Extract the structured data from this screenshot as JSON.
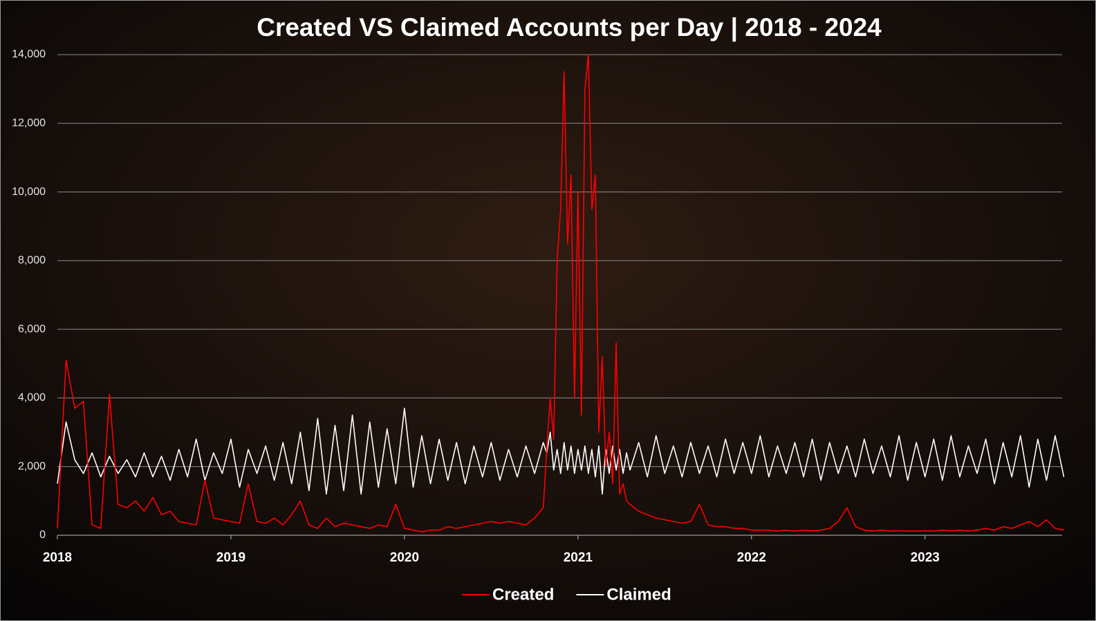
{
  "chart_data": {
    "type": "line",
    "title": "Created VS Claimed Accounts per Day | 2018 - 2024",
    "x": [
      2018.0,
      2018.05,
      2018.1,
      2018.15,
      2018.2,
      2018.25,
      2018.3,
      2018.35,
      2018.4,
      2018.45,
      2018.5,
      2018.55,
      2018.6,
      2018.65,
      2018.7,
      2018.75,
      2018.8,
      2018.85,
      2018.9,
      2018.95,
      2019.0,
      2019.05,
      2019.1,
      2019.15,
      2019.2,
      2019.25,
      2019.3,
      2019.35,
      2019.4,
      2019.45,
      2019.5,
      2019.55,
      2019.6,
      2019.65,
      2019.7,
      2019.75,
      2019.8,
      2019.85,
      2019.9,
      2019.95,
      2020.0,
      2020.05,
      2020.1,
      2020.15,
      2020.2,
      2020.25,
      2020.3,
      2020.35,
      2020.4,
      2020.45,
      2020.5,
      2020.55,
      2020.6,
      2020.65,
      2020.7,
      2020.75,
      2020.8,
      2020.82,
      2020.84,
      2020.86,
      2020.88,
      2020.9,
      2020.92,
      2020.94,
      2020.96,
      2020.98,
      2021.0,
      2021.02,
      2021.04,
      2021.06,
      2021.08,
      2021.1,
      2021.12,
      2021.14,
      2021.16,
      2021.18,
      2021.2,
      2021.22,
      2021.24,
      2021.26,
      2021.28,
      2021.3,
      2021.35,
      2021.4,
      2021.45,
      2021.5,
      2021.55,
      2021.6,
      2021.65,
      2021.7,
      2021.75,
      2021.8,
      2021.85,
      2021.9,
      2021.95,
      2022.0,
      2022.05,
      2022.1,
      2022.15,
      2022.2,
      2022.25,
      2022.3,
      2022.35,
      2022.4,
      2022.45,
      2022.5,
      2022.55,
      2022.6,
      2022.65,
      2022.7,
      2022.75,
      2022.8,
      2022.85,
      2022.9,
      2022.95,
      2023.0,
      2023.05,
      2023.1,
      2023.15,
      2023.2,
      2023.25,
      2023.3,
      2023.35,
      2023.4,
      2023.45,
      2023.5,
      2023.55,
      2023.6,
      2023.65,
      2023.7,
      2023.75,
      2023.8
    ],
    "series": [
      {
        "name": "Created",
        "color": "#ff0000",
        "values": [
          200,
          5100,
          3700,
          3900,
          300,
          200,
          4100,
          900,
          800,
          1000,
          700,
          1100,
          600,
          700,
          400,
          350,
          300,
          1600,
          500,
          450,
          400,
          350,
          1500,
          400,
          350,
          500,
          300,
          600,
          1000,
          300,
          200,
          500,
          250,
          350,
          300,
          250,
          200,
          300,
          250,
          900,
          200,
          150,
          100,
          150,
          150,
          250,
          200,
          250,
          300,
          350,
          400,
          350,
          400,
          350,
          300,
          500,
          800,
          2500,
          4000,
          2800,
          8000,
          9500,
          13500,
          8500,
          10500,
          4000,
          10000,
          3500,
          13000,
          14000,
          9500,
          10500,
          3000,
          5200,
          2000,
          3000,
          1500,
          5600,
          1200,
          1500,
          1000,
          900,
          700,
          600,
          500,
          450,
          400,
          350,
          400,
          900,
          300,
          250,
          250,
          200,
          200,
          150,
          150,
          150,
          120,
          150,
          120,
          150,
          130,
          150,
          200,
          400,
          800,
          250,
          150,
          120,
          150,
          120,
          130,
          120,
          120,
          130,
          120,
          150,
          130,
          150,
          120,
          150,
          200,
          150,
          250,
          200,
          300,
          400,
          250,
          450,
          200,
          150
        ]
      },
      {
        "name": "Claimed",
        "color": "#ffffff",
        "values": [
          1500,
          3300,
          2200,
          1800,
          2400,
          1700,
          2300,
          1800,
          2200,
          1700,
          2400,
          1700,
          2300,
          1600,
          2500,
          1700,
          2800,
          1600,
          2400,
          1800,
          2800,
          1400,
          2500,
          1800,
          2600,
          1600,
          2700,
          1500,
          3000,
          1300,
          3400,
          1200,
          3200,
          1300,
          3500,
          1200,
          3300,
          1400,
          3100,
          1500,
          3700,
          1400,
          2900,
          1500,
          2800,
          1600,
          2700,
          1500,
          2600,
          1700,
          2700,
          1600,
          2500,
          1700,
          2600,
          1800,
          2700,
          2400,
          3000,
          1900,
          2500,
          1800,
          2700,
          1900,
          2600,
          1800,
          2500,
          1900,
          2600,
          1800,
          2500,
          1700,
          2600,
          1200,
          2500,
          1800,
          2600,
          1900,
          2500,
          1800,
          2400,
          1900,
          2700,
          1700,
          2900,
          1800,
          2600,
          1700,
          2700,
          1800,
          2600,
          1700,
          2800,
          1800,
          2700,
          1800,
          2900,
          1700,
          2600,
          1800,
          2700,
          1700,
          2800,
          1600,
          2700,
          1800,
          2600,
          1700,
          2800,
          1800,
          2600,
          1700,
          2900,
          1600,
          2700,
          1700,
          2800,
          1600,
          2900,
          1700,
          2600,
          1800,
          2800,
          1500,
          2700,
          1700,
          2900,
          1400,
          2800,
          1600,
          2900,
          1700
        ]
      }
    ],
    "xlim": [
      2018,
      2023.79
    ],
    "xticks": [
      2018,
      2019,
      2020,
      2021,
      2022,
      2023
    ],
    "ylim": [
      0,
      14000
    ],
    "yticks": [
      0,
      {
        "value": 2000,
        "label": "2,000"
      },
      {
        "value": 4000,
        "label": "4,000"
      },
      {
        "value": 6000,
        "label": "6,000"
      },
      {
        "value": 8000,
        "label": "8,000"
      },
      {
        "value": 10000,
        "label": "10,000"
      },
      {
        "value": 12000,
        "label": "12,000"
      },
      {
        "value": 14000,
        "label": "14,000"
      }
    ],
    "grid": true,
    "legend": "bottom"
  }
}
